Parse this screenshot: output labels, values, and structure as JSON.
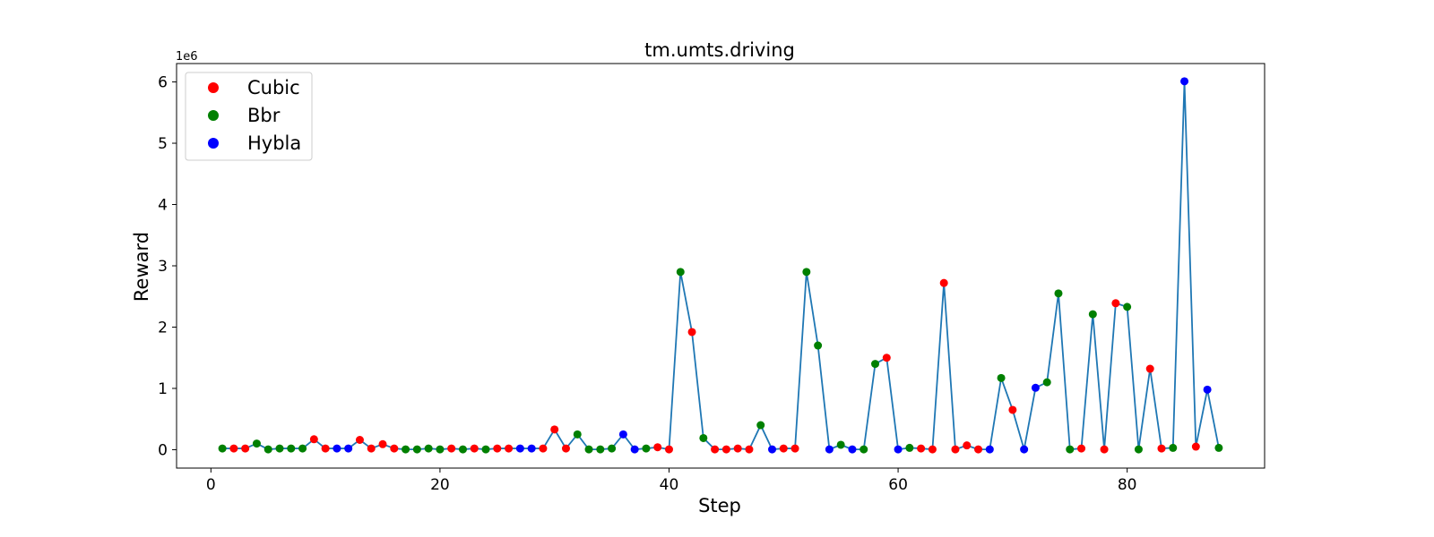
{
  "chart_data": {
    "type": "line",
    "title": "tm.umts.driving",
    "xlabel": "Step",
    "ylabel": "Reward",
    "y_offset_label": "1e6",
    "xlim": [
      -3,
      92
    ],
    "ylim": [
      -300000,
      6300000
    ],
    "xticks": [
      0,
      20,
      40,
      60,
      80
    ],
    "xtick_labels": [
      "0",
      "20",
      "40",
      "60",
      "80"
    ],
    "yticks": [
      0,
      1000000,
      2000000,
      3000000,
      4000000,
      5000000,
      6000000
    ],
    "ytick_labels": [
      "0",
      "1",
      "2",
      "3",
      "4",
      "5",
      "6"
    ],
    "grid": false,
    "legend_position": "top-left",
    "line_color": "#1f77b4",
    "series": [
      {
        "name": "Cubic",
        "color": "#ff0000"
      },
      {
        "name": "Bbr",
        "color": "#008000"
      },
      {
        "name": "Hybla",
        "color": "#0000ff"
      }
    ],
    "points": [
      {
        "x": 1,
        "y": 20000,
        "algo": "Bbr"
      },
      {
        "x": 2,
        "y": 20000,
        "algo": "Cubic"
      },
      {
        "x": 3,
        "y": 20000,
        "algo": "Cubic"
      },
      {
        "x": 4,
        "y": 100000,
        "algo": "Bbr"
      },
      {
        "x": 5,
        "y": 5000,
        "algo": "Bbr"
      },
      {
        "x": 6,
        "y": 20000,
        "algo": "Bbr"
      },
      {
        "x": 7,
        "y": 20000,
        "algo": "Bbr"
      },
      {
        "x": 8,
        "y": 20000,
        "algo": "Bbr"
      },
      {
        "x": 9,
        "y": 170000,
        "algo": "Cubic"
      },
      {
        "x": 10,
        "y": 20000,
        "algo": "Cubic"
      },
      {
        "x": 11,
        "y": 20000,
        "algo": "Hybla"
      },
      {
        "x": 12,
        "y": 20000,
        "algo": "Hybla"
      },
      {
        "x": 13,
        "y": 160000,
        "algo": "Cubic"
      },
      {
        "x": 14,
        "y": 20000,
        "algo": "Cubic"
      },
      {
        "x": 15,
        "y": 90000,
        "algo": "Cubic"
      },
      {
        "x": 16,
        "y": 20000,
        "algo": "Cubic"
      },
      {
        "x": 17,
        "y": 5000,
        "algo": "Bbr"
      },
      {
        "x": 18,
        "y": 5000,
        "algo": "Bbr"
      },
      {
        "x": 19,
        "y": 20000,
        "algo": "Bbr"
      },
      {
        "x": 20,
        "y": 5000,
        "algo": "Bbr"
      },
      {
        "x": 21,
        "y": 20000,
        "algo": "Cubic"
      },
      {
        "x": 22,
        "y": 5000,
        "algo": "Bbr"
      },
      {
        "x": 23,
        "y": 20000,
        "algo": "Cubic"
      },
      {
        "x": 24,
        "y": 5000,
        "algo": "Bbr"
      },
      {
        "x": 25,
        "y": 20000,
        "algo": "Cubic"
      },
      {
        "x": 26,
        "y": 20000,
        "algo": "Cubic"
      },
      {
        "x": 27,
        "y": 20000,
        "algo": "Hybla"
      },
      {
        "x": 28,
        "y": 20000,
        "algo": "Hybla"
      },
      {
        "x": 29,
        "y": 20000,
        "algo": "Cubic"
      },
      {
        "x": 30,
        "y": 330000,
        "algo": "Cubic"
      },
      {
        "x": 31,
        "y": 20000,
        "algo": "Cubic"
      },
      {
        "x": 32,
        "y": 250000,
        "algo": "Bbr"
      },
      {
        "x": 33,
        "y": 5000,
        "algo": "Bbr"
      },
      {
        "x": 34,
        "y": 5000,
        "algo": "Bbr"
      },
      {
        "x": 35,
        "y": 20000,
        "algo": "Bbr"
      },
      {
        "x": 36,
        "y": 250000,
        "algo": "Hybla"
      },
      {
        "x": 37,
        "y": 5000,
        "algo": "Hybla"
      },
      {
        "x": 38,
        "y": 20000,
        "algo": "Bbr"
      },
      {
        "x": 39,
        "y": 40000,
        "algo": "Cubic"
      },
      {
        "x": 40,
        "y": 5000,
        "algo": "Cubic"
      },
      {
        "x": 41,
        "y": 2900000,
        "algo": "Bbr"
      },
      {
        "x": 42,
        "y": 1920000,
        "algo": "Cubic"
      },
      {
        "x": 43,
        "y": 190000,
        "algo": "Bbr"
      },
      {
        "x": 44,
        "y": 5000,
        "algo": "Cubic"
      },
      {
        "x": 45,
        "y": 5000,
        "algo": "Cubic"
      },
      {
        "x": 46,
        "y": 20000,
        "algo": "Cubic"
      },
      {
        "x": 47,
        "y": 5000,
        "algo": "Cubic"
      },
      {
        "x": 48,
        "y": 400000,
        "algo": "Bbr"
      },
      {
        "x": 49,
        "y": 5000,
        "algo": "Hybla"
      },
      {
        "x": 50,
        "y": 20000,
        "algo": "Cubic"
      },
      {
        "x": 51,
        "y": 20000,
        "algo": "Cubic"
      },
      {
        "x": 52,
        "y": 2900000,
        "algo": "Bbr"
      },
      {
        "x": 53,
        "y": 1700000,
        "algo": "Bbr"
      },
      {
        "x": 54,
        "y": 5000,
        "algo": "Hybla"
      },
      {
        "x": 55,
        "y": 80000,
        "algo": "Bbr"
      },
      {
        "x": 56,
        "y": 5000,
        "algo": "Hybla"
      },
      {
        "x": 57,
        "y": 5000,
        "algo": "Bbr"
      },
      {
        "x": 58,
        "y": 1400000,
        "algo": "Bbr"
      },
      {
        "x": 59,
        "y": 1500000,
        "algo": "Cubic"
      },
      {
        "x": 60,
        "y": 5000,
        "algo": "Hybla"
      },
      {
        "x": 61,
        "y": 30000,
        "algo": "Bbr"
      },
      {
        "x": 62,
        "y": 20000,
        "algo": "Cubic"
      },
      {
        "x": 63,
        "y": 5000,
        "algo": "Cubic"
      },
      {
        "x": 64,
        "y": 2720000,
        "algo": "Cubic"
      },
      {
        "x": 65,
        "y": 5000,
        "algo": "Cubic"
      },
      {
        "x": 66,
        "y": 70000,
        "algo": "Cubic"
      },
      {
        "x": 67,
        "y": 5000,
        "algo": "Cubic"
      },
      {
        "x": 68,
        "y": 5000,
        "algo": "Hybla"
      },
      {
        "x": 69,
        "y": 1170000,
        "algo": "Bbr"
      },
      {
        "x": 70,
        "y": 650000,
        "algo": "Cubic"
      },
      {
        "x": 71,
        "y": 5000,
        "algo": "Hybla"
      },
      {
        "x": 72,
        "y": 1010000,
        "algo": "Hybla"
      },
      {
        "x": 73,
        "y": 1100000,
        "algo": "Bbr"
      },
      {
        "x": 74,
        "y": 2550000,
        "algo": "Bbr"
      },
      {
        "x": 75,
        "y": 5000,
        "algo": "Bbr"
      },
      {
        "x": 76,
        "y": 20000,
        "algo": "Cubic"
      },
      {
        "x": 77,
        "y": 2210000,
        "algo": "Bbr"
      },
      {
        "x": 78,
        "y": 5000,
        "algo": "Cubic"
      },
      {
        "x": 79,
        "y": 2390000,
        "algo": "Cubic"
      },
      {
        "x": 80,
        "y": 2330000,
        "algo": "Bbr"
      },
      {
        "x": 81,
        "y": 5000,
        "algo": "Bbr"
      },
      {
        "x": 82,
        "y": 1320000,
        "algo": "Cubic"
      },
      {
        "x": 83,
        "y": 20000,
        "algo": "Cubic"
      },
      {
        "x": 84,
        "y": 30000,
        "algo": "Bbr"
      },
      {
        "x": 85,
        "y": 6010000,
        "algo": "Hybla"
      },
      {
        "x": 86,
        "y": 50000,
        "algo": "Cubic"
      },
      {
        "x": 87,
        "y": 980000,
        "algo": "Hybla"
      },
      {
        "x": 88,
        "y": 30000,
        "algo": "Bbr"
      }
    ]
  }
}
